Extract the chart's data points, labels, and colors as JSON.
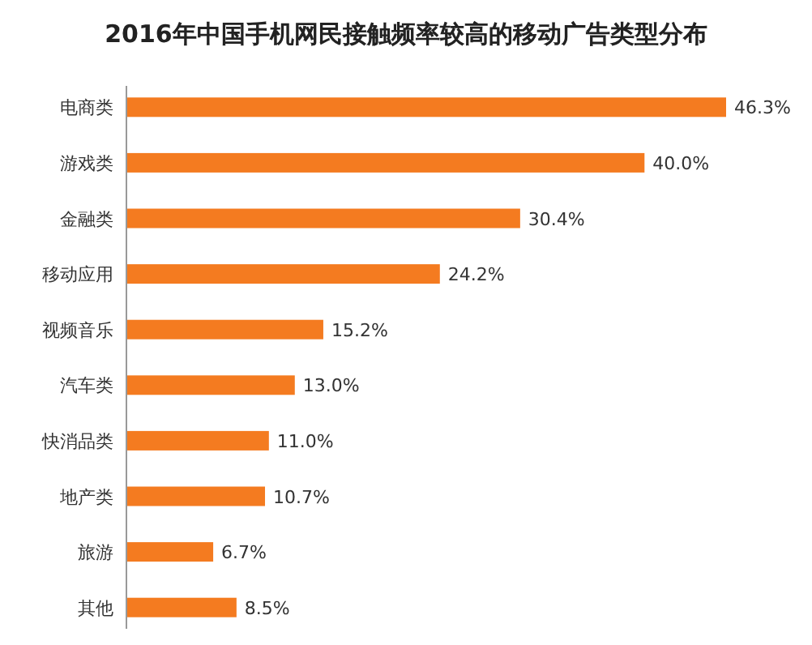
{
  "chart_data": {
    "type": "bar",
    "orientation": "horizontal",
    "title": "2016年中国手机网民接触频率较高的移动广告类型分布",
    "categories": [
      "电商类",
      "游戏类",
      "金融类",
      "移动应用",
      "视频音乐",
      "汽车类",
      "快消品类",
      "地产类",
      "旅游",
      "其他"
    ],
    "values": [
      46.3,
      40.0,
      30.4,
      24.2,
      15.2,
      13.0,
      11.0,
      10.7,
      6.7,
      8.5
    ],
    "value_labels": [
      "46.3%",
      "40.0%",
      "30.4%",
      "24.2%",
      "15.2%",
      "13.0%",
      "11.0%",
      "10.7%",
      "6.7%",
      "8.5%"
    ],
    "color": "#f47b20"
  }
}
